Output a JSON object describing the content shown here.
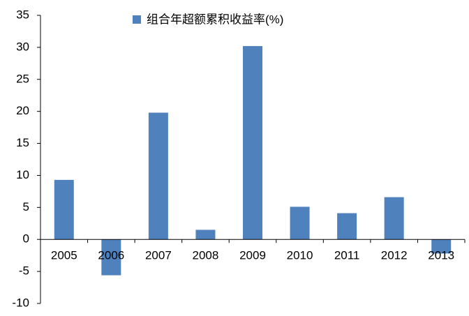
{
  "chart_data": {
    "type": "bar",
    "legend_label": "组合年超额累积收益率(%)",
    "categories": [
      "2005",
      "2006",
      "2007",
      "2008",
      "2009",
      "2010",
      "2011",
      "2012",
      "2013"
    ],
    "values": [
      9.3,
      -5.6,
      19.8,
      1.5,
      30.2,
      5.1,
      4.1,
      6.6,
      -2.2
    ],
    "color": "#4f81bd",
    "ylim": [
      -10,
      35
    ],
    "yticks": [
      -10,
      -5,
      0,
      5,
      10,
      15,
      20,
      25,
      30,
      35
    ],
    "grid": false
  }
}
